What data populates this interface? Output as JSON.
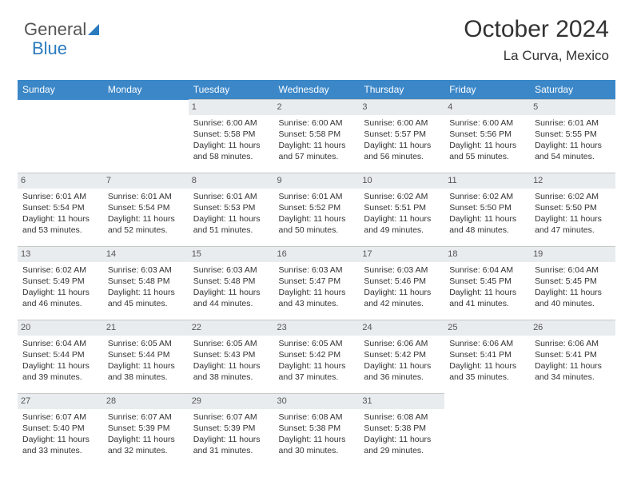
{
  "logo": {
    "part1": "General",
    "part2": "Blue"
  },
  "title": "October 2024",
  "subtitle": "La Curva, Mexico",
  "colors": {
    "header_bg": "#3b87c8",
    "header_fg": "#ffffff",
    "daynum_bg": "#e8ecef",
    "rule": "#c8c8c8",
    "logo_blue": "#2b7bbf"
  },
  "day_headers": [
    "Sunday",
    "Monday",
    "Tuesday",
    "Wednesday",
    "Thursday",
    "Friday",
    "Saturday"
  ],
  "weeks": [
    [
      null,
      null,
      {
        "n": "1",
        "sr": "Sunrise: 6:00 AM",
        "ss": "Sunset: 5:58 PM",
        "dl": "Daylight: 11 hours and 58 minutes."
      },
      {
        "n": "2",
        "sr": "Sunrise: 6:00 AM",
        "ss": "Sunset: 5:58 PM",
        "dl": "Daylight: 11 hours and 57 minutes."
      },
      {
        "n": "3",
        "sr": "Sunrise: 6:00 AM",
        "ss": "Sunset: 5:57 PM",
        "dl": "Daylight: 11 hours and 56 minutes."
      },
      {
        "n": "4",
        "sr": "Sunrise: 6:00 AM",
        "ss": "Sunset: 5:56 PM",
        "dl": "Daylight: 11 hours and 55 minutes."
      },
      {
        "n": "5",
        "sr": "Sunrise: 6:01 AM",
        "ss": "Sunset: 5:55 PM",
        "dl": "Daylight: 11 hours and 54 minutes."
      }
    ],
    [
      {
        "n": "6",
        "sr": "Sunrise: 6:01 AM",
        "ss": "Sunset: 5:54 PM",
        "dl": "Daylight: 11 hours and 53 minutes."
      },
      {
        "n": "7",
        "sr": "Sunrise: 6:01 AM",
        "ss": "Sunset: 5:54 PM",
        "dl": "Daylight: 11 hours and 52 minutes."
      },
      {
        "n": "8",
        "sr": "Sunrise: 6:01 AM",
        "ss": "Sunset: 5:53 PM",
        "dl": "Daylight: 11 hours and 51 minutes."
      },
      {
        "n": "9",
        "sr": "Sunrise: 6:01 AM",
        "ss": "Sunset: 5:52 PM",
        "dl": "Daylight: 11 hours and 50 minutes."
      },
      {
        "n": "10",
        "sr": "Sunrise: 6:02 AM",
        "ss": "Sunset: 5:51 PM",
        "dl": "Daylight: 11 hours and 49 minutes."
      },
      {
        "n": "11",
        "sr": "Sunrise: 6:02 AM",
        "ss": "Sunset: 5:50 PM",
        "dl": "Daylight: 11 hours and 48 minutes."
      },
      {
        "n": "12",
        "sr": "Sunrise: 6:02 AM",
        "ss": "Sunset: 5:50 PM",
        "dl": "Daylight: 11 hours and 47 minutes."
      }
    ],
    [
      {
        "n": "13",
        "sr": "Sunrise: 6:02 AM",
        "ss": "Sunset: 5:49 PM",
        "dl": "Daylight: 11 hours and 46 minutes."
      },
      {
        "n": "14",
        "sr": "Sunrise: 6:03 AM",
        "ss": "Sunset: 5:48 PM",
        "dl": "Daylight: 11 hours and 45 minutes."
      },
      {
        "n": "15",
        "sr": "Sunrise: 6:03 AM",
        "ss": "Sunset: 5:48 PM",
        "dl": "Daylight: 11 hours and 44 minutes."
      },
      {
        "n": "16",
        "sr": "Sunrise: 6:03 AM",
        "ss": "Sunset: 5:47 PM",
        "dl": "Daylight: 11 hours and 43 minutes."
      },
      {
        "n": "17",
        "sr": "Sunrise: 6:03 AM",
        "ss": "Sunset: 5:46 PM",
        "dl": "Daylight: 11 hours and 42 minutes."
      },
      {
        "n": "18",
        "sr": "Sunrise: 6:04 AM",
        "ss": "Sunset: 5:45 PM",
        "dl": "Daylight: 11 hours and 41 minutes."
      },
      {
        "n": "19",
        "sr": "Sunrise: 6:04 AM",
        "ss": "Sunset: 5:45 PM",
        "dl": "Daylight: 11 hours and 40 minutes."
      }
    ],
    [
      {
        "n": "20",
        "sr": "Sunrise: 6:04 AM",
        "ss": "Sunset: 5:44 PM",
        "dl": "Daylight: 11 hours and 39 minutes."
      },
      {
        "n": "21",
        "sr": "Sunrise: 6:05 AM",
        "ss": "Sunset: 5:44 PM",
        "dl": "Daylight: 11 hours and 38 minutes."
      },
      {
        "n": "22",
        "sr": "Sunrise: 6:05 AM",
        "ss": "Sunset: 5:43 PM",
        "dl": "Daylight: 11 hours and 38 minutes."
      },
      {
        "n": "23",
        "sr": "Sunrise: 6:05 AM",
        "ss": "Sunset: 5:42 PM",
        "dl": "Daylight: 11 hours and 37 minutes."
      },
      {
        "n": "24",
        "sr": "Sunrise: 6:06 AM",
        "ss": "Sunset: 5:42 PM",
        "dl": "Daylight: 11 hours and 36 minutes."
      },
      {
        "n": "25",
        "sr": "Sunrise: 6:06 AM",
        "ss": "Sunset: 5:41 PM",
        "dl": "Daylight: 11 hours and 35 minutes."
      },
      {
        "n": "26",
        "sr": "Sunrise: 6:06 AM",
        "ss": "Sunset: 5:41 PM",
        "dl": "Daylight: 11 hours and 34 minutes."
      }
    ],
    [
      {
        "n": "27",
        "sr": "Sunrise: 6:07 AM",
        "ss": "Sunset: 5:40 PM",
        "dl": "Daylight: 11 hours and 33 minutes."
      },
      {
        "n": "28",
        "sr": "Sunrise: 6:07 AM",
        "ss": "Sunset: 5:39 PM",
        "dl": "Daylight: 11 hours and 32 minutes."
      },
      {
        "n": "29",
        "sr": "Sunrise: 6:07 AM",
        "ss": "Sunset: 5:39 PM",
        "dl": "Daylight: 11 hours and 31 minutes."
      },
      {
        "n": "30",
        "sr": "Sunrise: 6:08 AM",
        "ss": "Sunset: 5:38 PM",
        "dl": "Daylight: 11 hours and 30 minutes."
      },
      {
        "n": "31",
        "sr": "Sunrise: 6:08 AM",
        "ss": "Sunset: 5:38 PM",
        "dl": "Daylight: 11 hours and 29 minutes."
      },
      null,
      null
    ]
  ]
}
